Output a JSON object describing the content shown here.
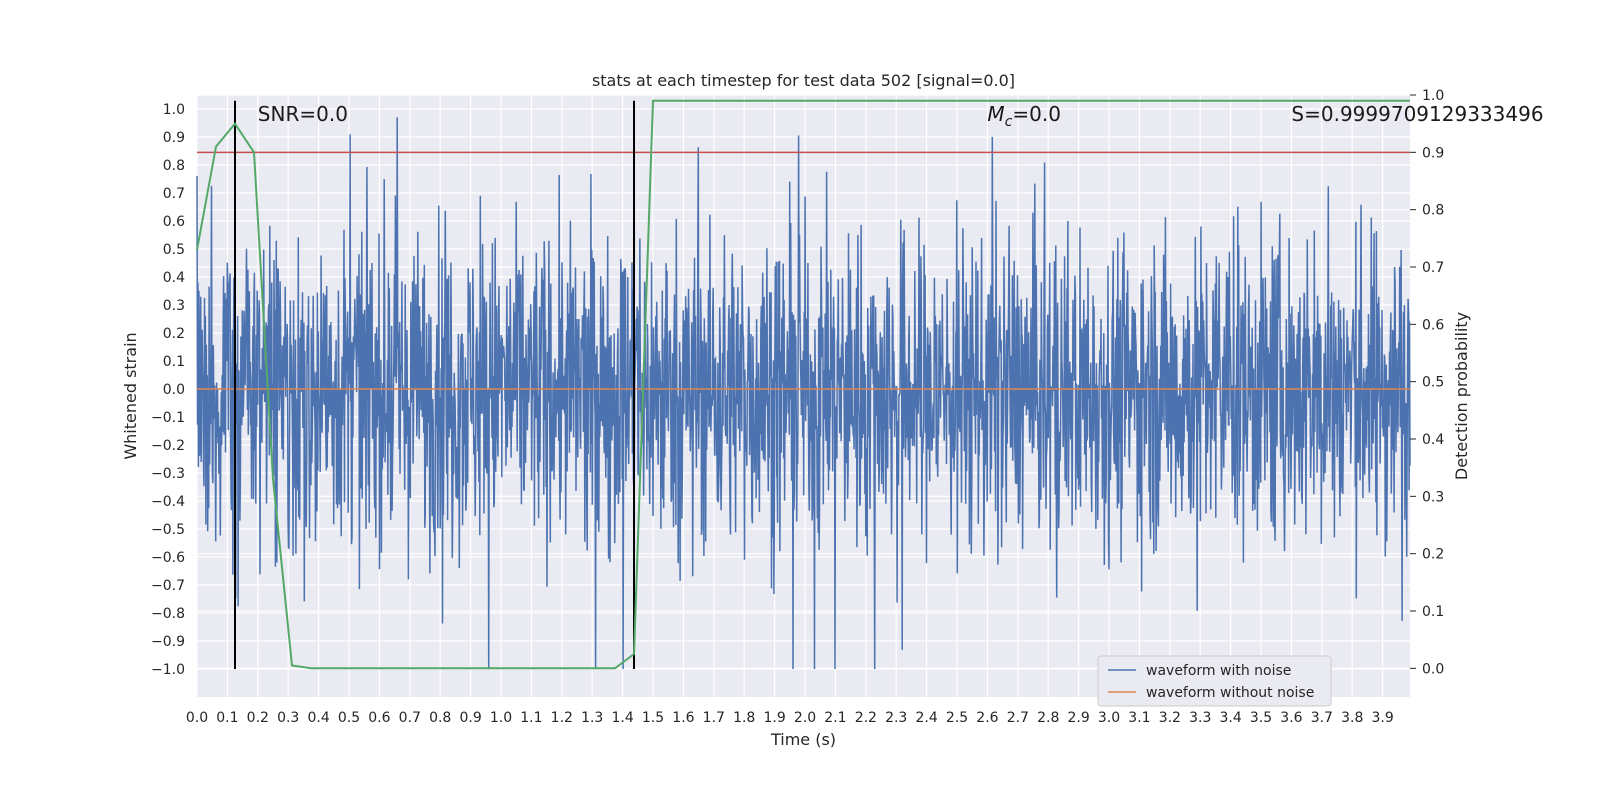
{
  "chart_data": {
    "type": "line",
    "title": "stats at each timestep for test data 502 [signal=0.0]",
    "xlabel": "Time (s)",
    "ylabel": "Whitened strain",
    "y2label": "Detection probability",
    "xlim": [
      0.0,
      3.99
    ],
    "ylim": [
      -1.1,
      1.05
    ],
    "y2lim": [
      -0.05,
      1.0
    ],
    "xticks": [
      "0.0",
      "0.1",
      "0.2",
      "0.3",
      "0.4",
      "0.5",
      "0.6",
      "0.7",
      "0.8",
      "0.9",
      "1.0",
      "1.1",
      "1.2",
      "1.3",
      "1.4",
      "1.5",
      "1.6",
      "1.7",
      "1.8",
      "1.9",
      "2.0",
      "2.1",
      "2.2",
      "2.3",
      "2.4",
      "2.5",
      "2.6",
      "2.7",
      "2.8",
      "2.9",
      "3.0",
      "3.1",
      "3.2",
      "3.3",
      "3.4",
      "3.5",
      "3.6",
      "3.7",
      "3.8",
      "3.9"
    ],
    "yticks": [
      "1.0",
      "0.9",
      "0.8",
      "0.7",
      "0.6",
      "0.5",
      "0.4",
      "0.3",
      "0.2",
      "0.1",
      "0.0",
      "−0.1",
      "−0.2",
      "−0.3",
      "−0.4",
      "−0.5",
      "−0.6",
      "−0.7",
      "−0.8",
      "−0.9",
      "−1.0"
    ],
    "y2ticks": [
      "1.0",
      "0.9",
      "0.8",
      "0.7",
      "0.6",
      "0.5",
      "0.4",
      "0.3",
      "0.2",
      "0.1",
      "0.0"
    ],
    "grid": true,
    "legend_position": "lower-right",
    "series": [
      {
        "name": "waveform with noise",
        "axis": "left",
        "color": "#4c72b0",
        "sample_rate_hz": 2048,
        "amplitude_range": [
          -1.0,
          0.97
        ]
      },
      {
        "name": "waveform without noise",
        "axis": "left",
        "color": "#dd8452",
        "x": [
          0.0,
          3.99
        ],
        "y": [
          0.0,
          0.0
        ]
      },
      {
        "axis": "right",
        "color": "#55a868",
        "x": [
          0.0,
          0.0625,
          0.125,
          0.1875,
          0.25,
          0.3125,
          0.375,
          0.4375,
          0.5,
          0.5625,
          0.625,
          0.6875,
          0.75,
          0.8125,
          0.875,
          0.9375,
          1.0,
          1.0625,
          1.125,
          1.1875,
          1.25,
          1.3125,
          1.375,
          1.4375,
          1.5,
          1.5625,
          1.625,
          1.6875,
          1.75,
          2.0,
          2.5,
          3.0,
          3.5,
          3.99
        ],
        "y": [
          0.73,
          0.91,
          0.95,
          0.9,
          0.33,
          0.005,
          0.0,
          0.0,
          0.0,
          0.0,
          0.0,
          0.0,
          0.0,
          0.0,
          0.0,
          0.0,
          0.0,
          0.0,
          0.0,
          0.0,
          0.0,
          0.0,
          0.0,
          0.025,
          0.99,
          0.99,
          0.99,
          0.99,
          0.99,
          0.99,
          0.99,
          0.99,
          0.99,
          0.99
        ]
      }
    ],
    "threshold": {
      "axis": "right",
      "value": 0.9,
      "color": "#c44e52"
    },
    "vlines": [
      0.125,
      1.4375
    ],
    "annotations": [
      {
        "text": "SNR=0.0",
        "x": 0.2
      },
      {
        "text_main": "M",
        "text_sub": "c",
        "text_rest": "=0.0",
        "x": 2.6
      },
      {
        "text": "S=0.9999709129333496",
        "x": 3.6
      }
    ]
  }
}
